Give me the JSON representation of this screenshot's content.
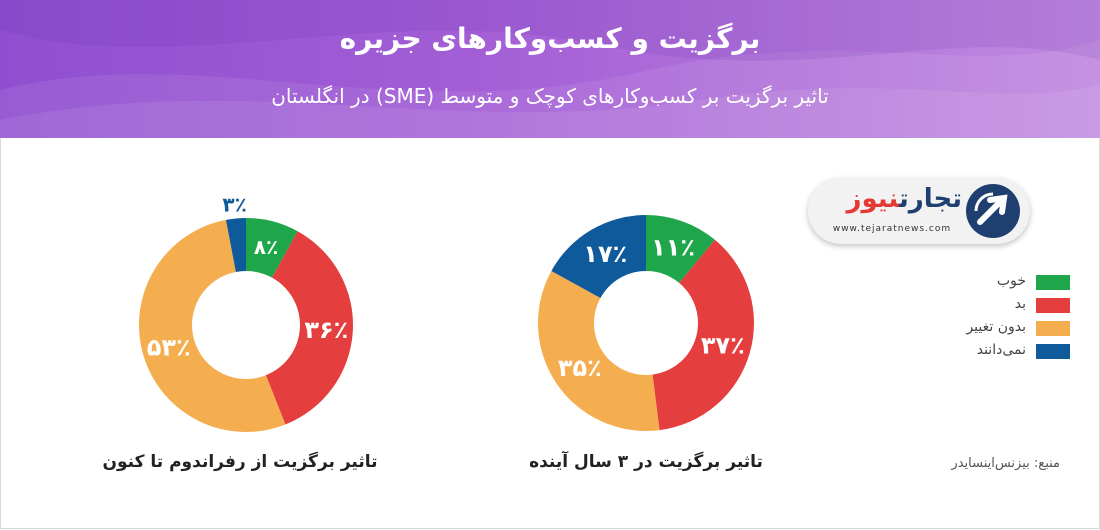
{
  "title": "برگزیت و کسب‌وکارهای جزیره",
  "subtitle": "تاثیر برگزیت بر کسب‌وکارهای کوچک و متوسط (SME) در انگلستان",
  "colors": {
    "good": "#1fa64b",
    "bad": "#e53e3e",
    "no_change": "#f5ae4f",
    "dont_know": "#0f5a9a"
  },
  "legend": [
    {
      "label": "خوب",
      "color": "#1fa64b"
    },
    {
      "label": "بد",
      "color": "#e53e3e"
    },
    {
      "label": "بدون تغییر",
      "color": "#f5ae4f"
    },
    {
      "label": "نمی‌دانند",
      "color": "#0f5a9a"
    }
  ],
  "source": "منبع: بیزنس‌اینسایدر",
  "logo": {
    "name_part1": "تجارت",
    "name_part2": "نیوز",
    "url": "www.tejaratnews.com",
    "icon": "tejaratnews-logo-icon"
  },
  "chart_data": [
    {
      "type": "pie",
      "title": "تاثیر برگزیت در ۳ سال آینده",
      "categories": [
        "خوب",
        "بد",
        "بدون تغییر",
        "نمی‌دانند"
      ],
      "values": [
        11,
        37,
        35,
        17
      ],
      "labels": [
        "۱۱٪",
        "۳۷٪",
        "۳۵٪",
        "۱۷٪"
      ],
      "donut": true
    },
    {
      "type": "pie",
      "title": "تاثیر برگزیت از رفراندوم تا کنون",
      "categories": [
        "خوب",
        "بد",
        "بدون تغییر",
        "نمی‌دانند"
      ],
      "values": [
        8,
        36,
        53,
        3
      ],
      "labels": [
        "۸٪",
        "۳۶٪",
        "۵۳٪",
        "۳٪"
      ],
      "donut": true
    }
  ]
}
